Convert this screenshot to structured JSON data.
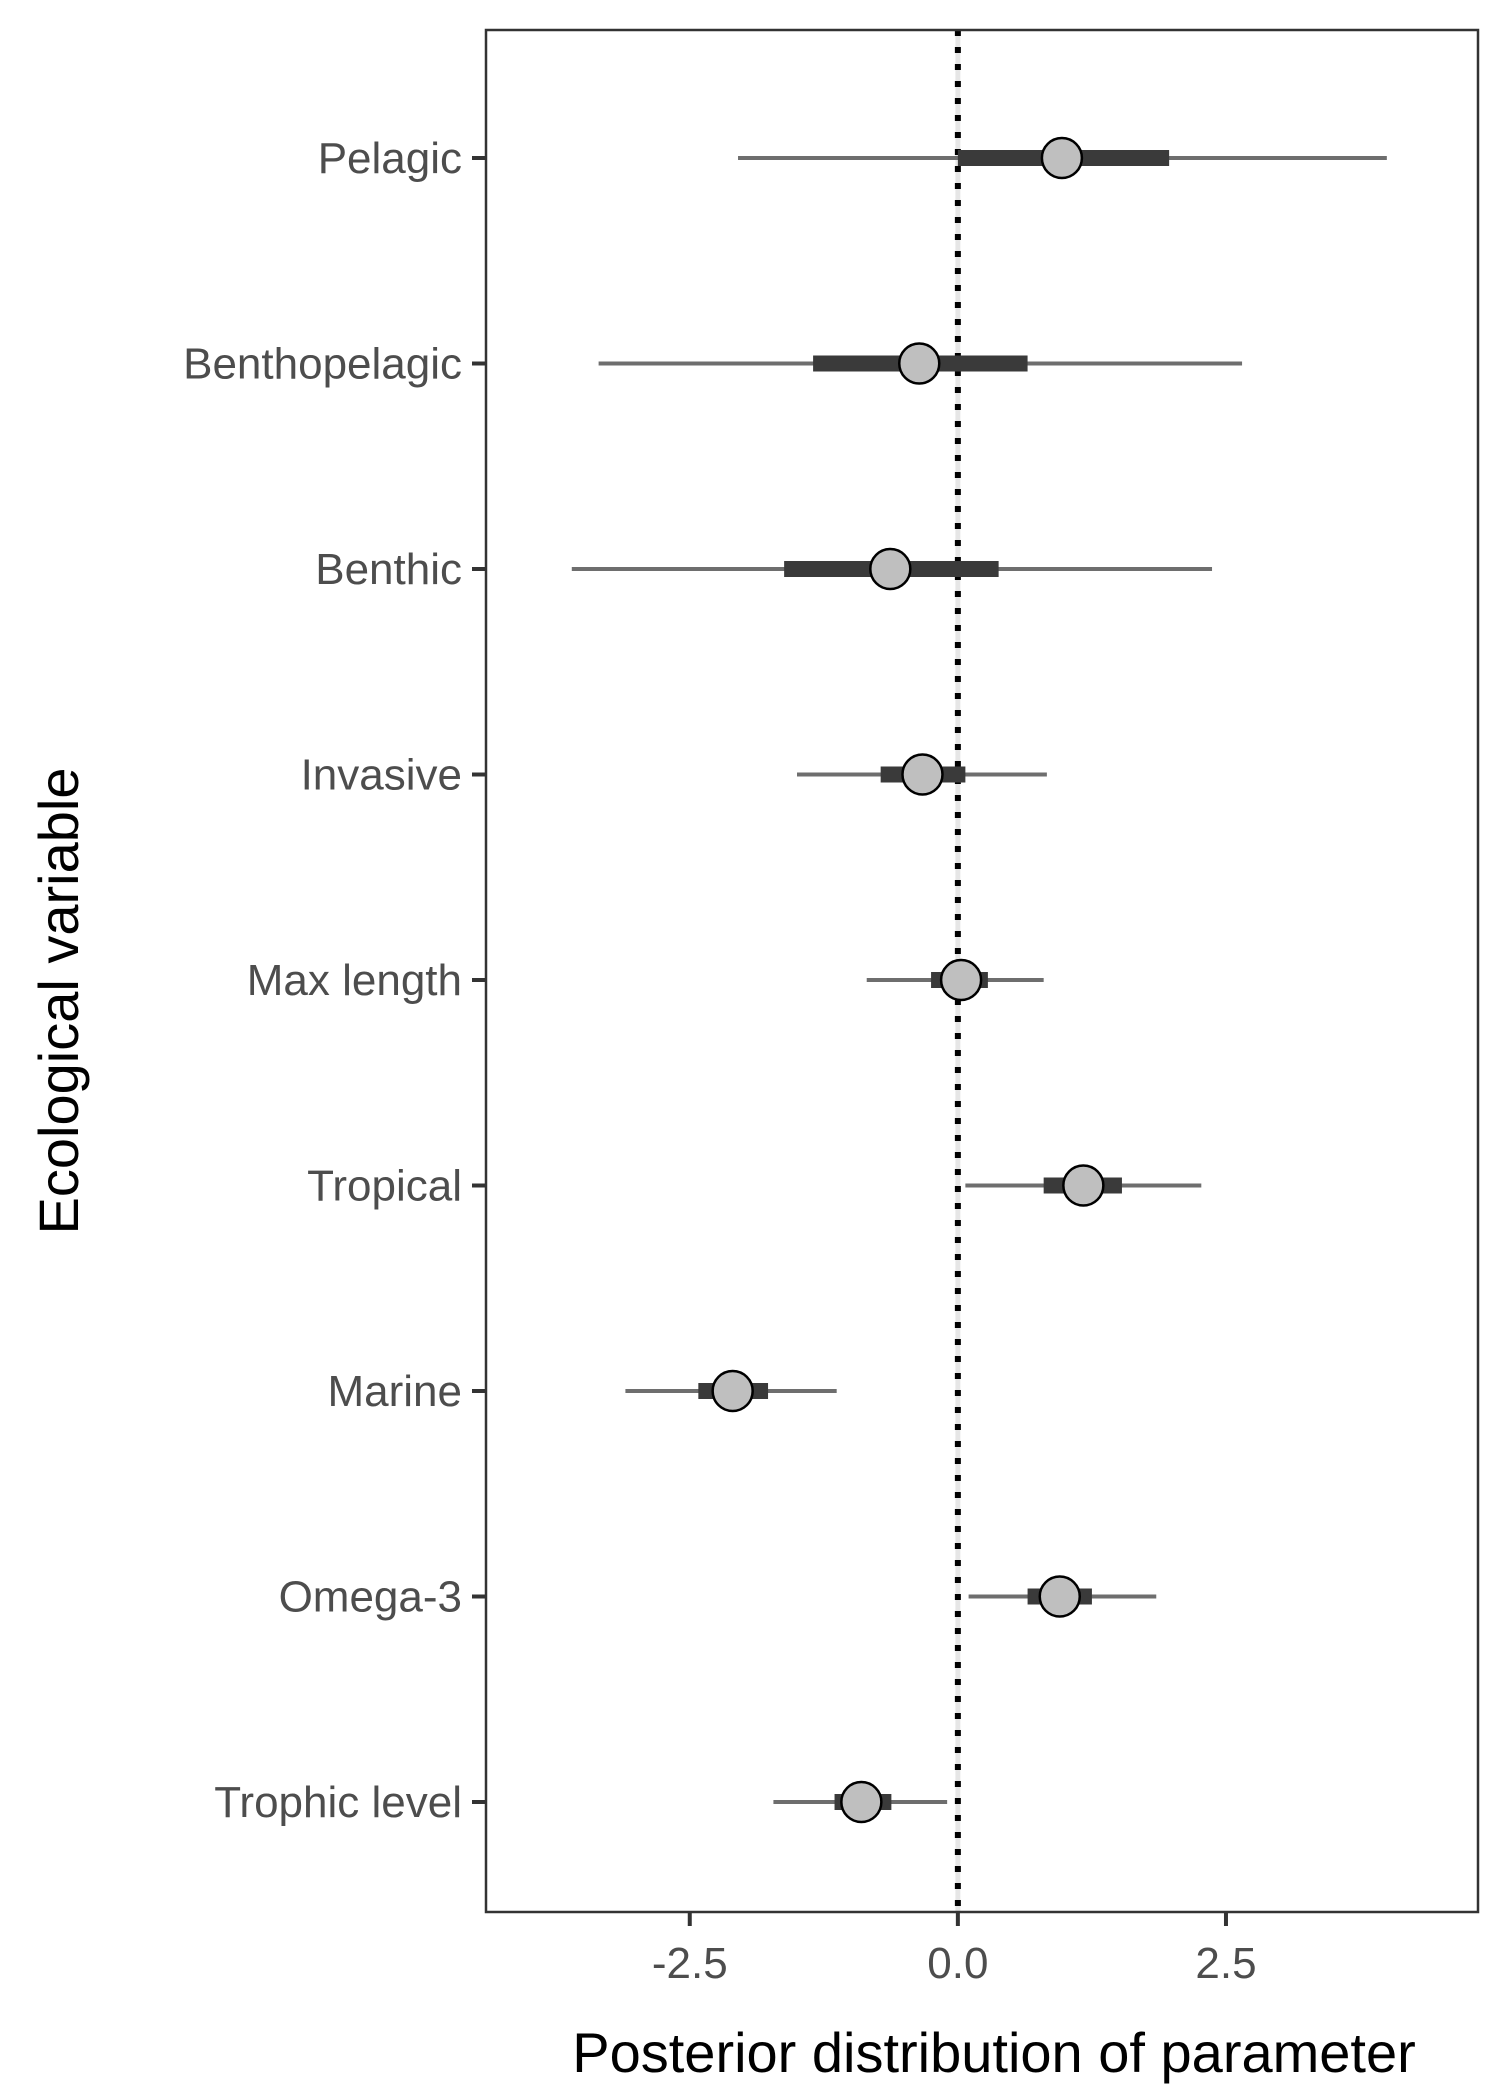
{
  "chart_data": {
    "type": "pointrange",
    "xlabel": "Posterior distribution of parameter",
    "ylabel": "Ecological variable",
    "xlim": [
      -4.4,
      4.85
    ],
    "x_ticks": [
      -2.5,
      0.0,
      2.5
    ],
    "x_tick_labels": [
      "-2.5",
      "0.0",
      "2.5"
    ],
    "reference_line": 0,
    "grid": false,
    "legend": "none",
    "colors": {
      "outer_interval": "#6e6e6e",
      "inner_interval": "#3a3a3a",
      "point_fill": "#bfbfbf",
      "point_stroke": "#000000",
      "reference": "#000000",
      "panel_border": "#333333"
    },
    "series": [
      {
        "label": "Pelagic",
        "median": 0.97,
        "inner": [
          0.0,
          1.97
        ],
        "outer": [
          -2.05,
          4.0
        ]
      },
      {
        "label": "Benthopelagic",
        "median": -0.36,
        "inner": [
          -1.35,
          0.65
        ],
        "outer": [
          -3.35,
          2.65
        ]
      },
      {
        "label": "Benthic",
        "median": -0.63,
        "inner": [
          -1.62,
          0.38
        ],
        "outer": [
          -3.6,
          2.37
        ]
      },
      {
        "label": "Invasive",
        "median": -0.33,
        "inner": [
          -0.72,
          0.07
        ],
        "outer": [
          -1.5,
          0.83
        ]
      },
      {
        "label": "Max length",
        "median": 0.03,
        "inner": [
          -0.25,
          0.28
        ],
        "outer": [
          -0.85,
          0.8
        ]
      },
      {
        "label": "Tropical",
        "median": 1.17,
        "inner": [
          0.8,
          1.53
        ],
        "outer": [
          0.07,
          2.27
        ]
      },
      {
        "label": "Marine",
        "median": -2.1,
        "inner": [
          -2.42,
          -1.77
        ],
        "outer": [
          -3.1,
          -1.13
        ]
      },
      {
        "label": "Omega-3",
        "median": 0.95,
        "inner": [
          0.65,
          1.25
        ],
        "outer": [
          0.1,
          1.85
        ]
      },
      {
        "label": "Trophic level",
        "median": -0.9,
        "inner": [
          -1.15,
          -0.62
        ],
        "outer": [
          -1.72,
          -0.1
        ]
      }
    ]
  }
}
